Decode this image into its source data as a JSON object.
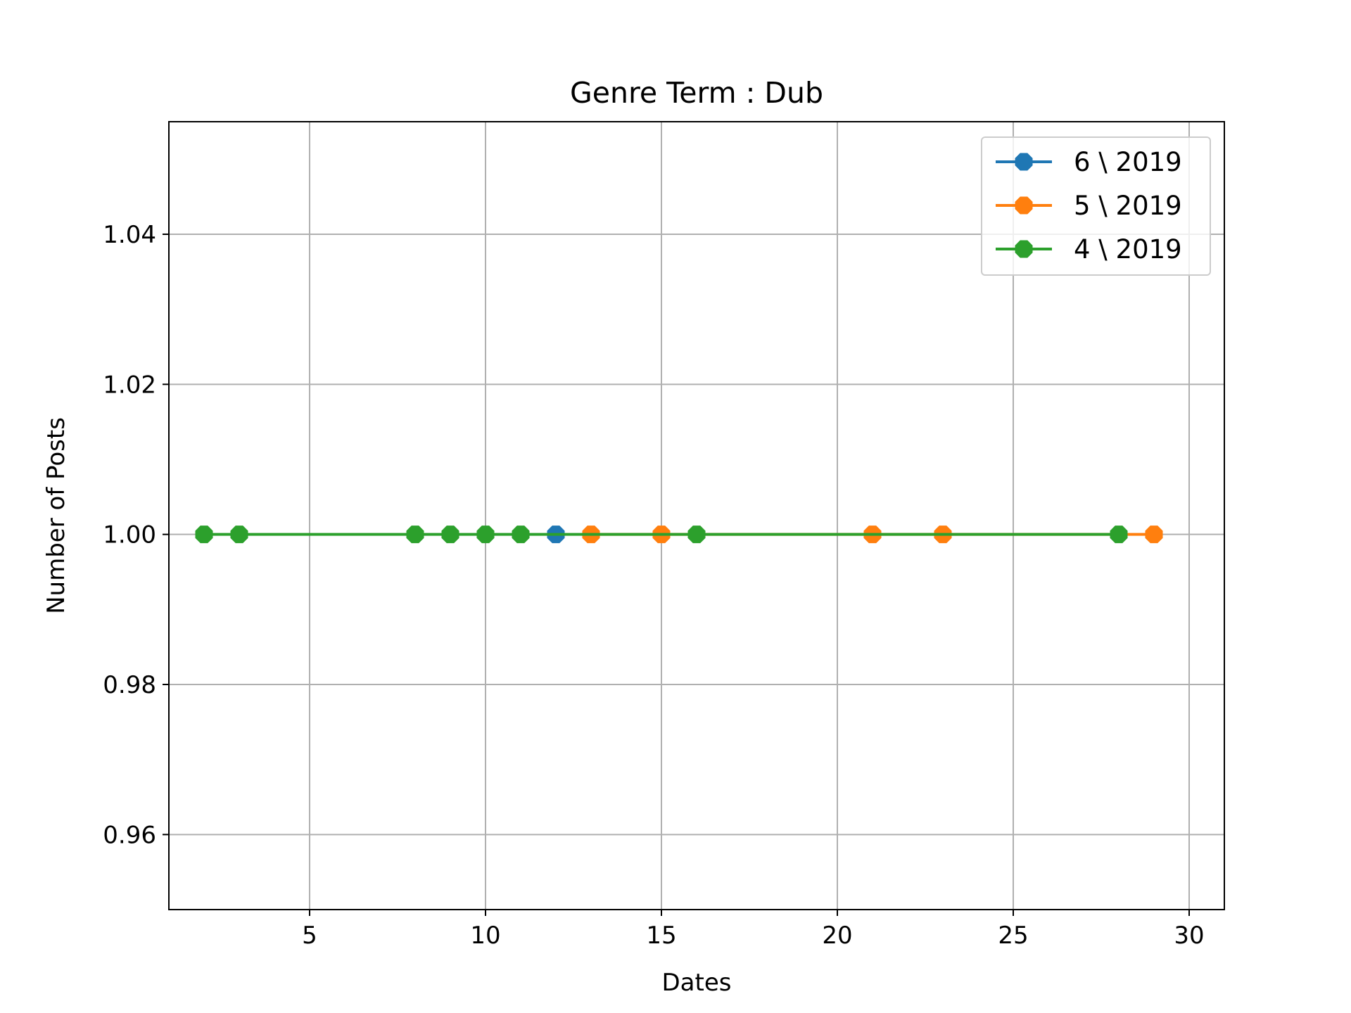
{
  "chart_data": {
    "type": "line",
    "title": "Genre Term : Dub",
    "xlabel": "Dates",
    "ylabel": "Number of Posts",
    "xlim": [
      1,
      31
    ],
    "ylim": [
      0.95,
      1.055
    ],
    "xticks": [
      5,
      10,
      15,
      20,
      25,
      30
    ],
    "xtick_labels": [
      "5",
      "10",
      "15",
      "20",
      "25",
      "30"
    ],
    "yticks": [
      0.96,
      0.98,
      1.0,
      1.02,
      1.04
    ],
    "ytick_labels": [
      "0.96",
      "0.98",
      "1.00",
      "1.02",
      "1.04"
    ],
    "grid": true,
    "legend_position": "top-right",
    "series": [
      {
        "name": "6 \\ 2019",
        "color": "#1f77b4",
        "x": [
          12
        ],
        "y": [
          1
        ]
      },
      {
        "name": "5 \\ 2019",
        "color": "#ff7f0e",
        "x": [
          13,
          15,
          21,
          23,
          29
        ],
        "y": [
          1,
          1,
          1,
          1,
          1
        ]
      },
      {
        "name": "4 \\ 2019",
        "color": "#2ca02c",
        "x": [
          2,
          3,
          8,
          9,
          10,
          11,
          16,
          28
        ],
        "y": [
          1,
          1,
          1,
          1,
          1,
          1,
          1,
          1
        ]
      }
    ]
  }
}
